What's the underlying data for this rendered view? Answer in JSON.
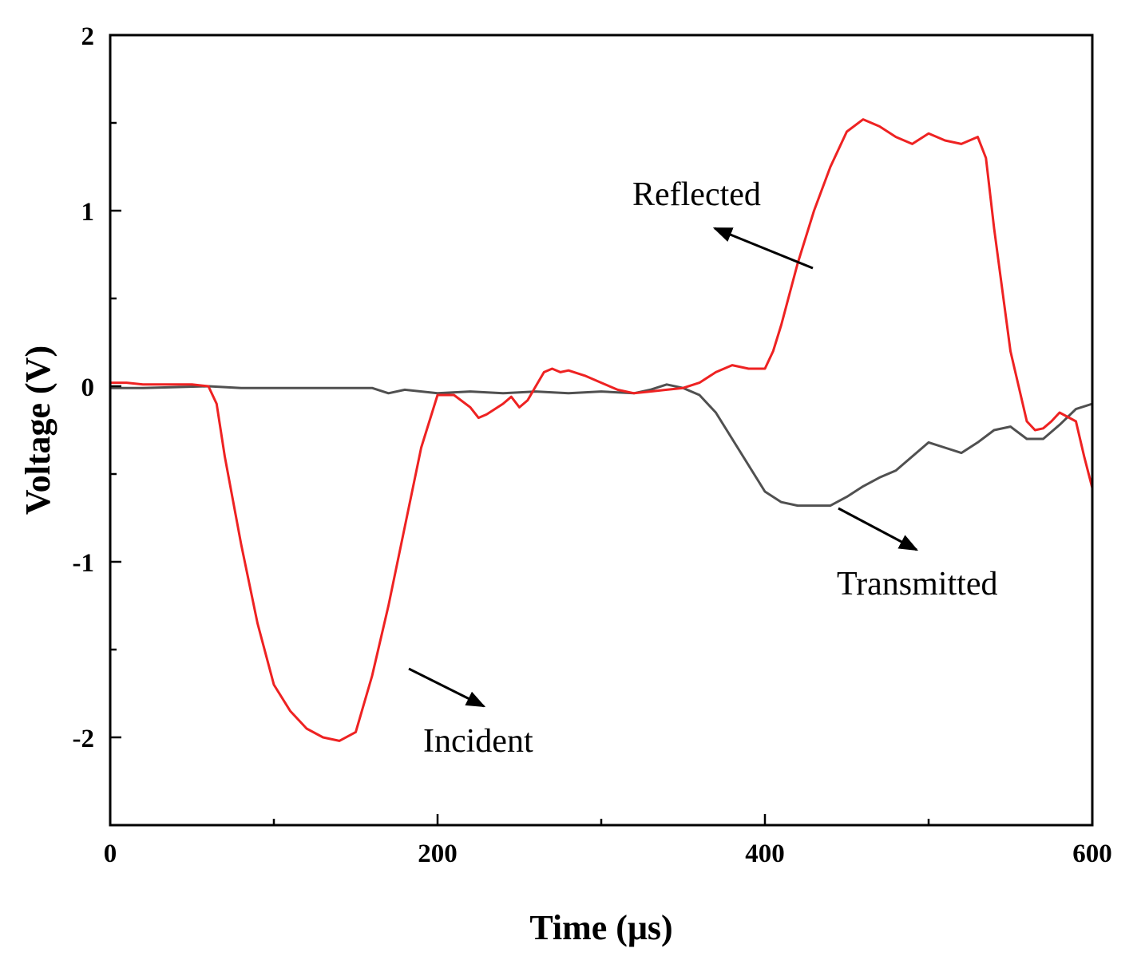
{
  "chart_data": {
    "type": "line",
    "title": "",
    "xlabel": "Time  (μs)",
    "ylabel": "Voltage (V)",
    "xlim": [
      0,
      600
    ],
    "ylim": [
      -2.5,
      2
    ],
    "xticks": [
      0,
      200,
      400,
      600
    ],
    "yticks": [
      2,
      1,
      0,
      -1,
      -2
    ],
    "grid": false,
    "series": [
      {
        "name": "Transmitted",
        "color": "#505050",
        "x": [
          0,
          20,
          40,
          60,
          80,
          100,
          120,
          140,
          160,
          170,
          180,
          200,
          220,
          240,
          260,
          280,
          300,
          320,
          330,
          340,
          350,
          360,
          370,
          380,
          390,
          400,
          410,
          420,
          430,
          440,
          450,
          460,
          470,
          480,
          490,
          500,
          510,
          520,
          530,
          540,
          550,
          560,
          570,
          580,
          590,
          600
        ],
        "y": [
          -0.01,
          -0.01,
          -0.005,
          0,
          -0.01,
          -0.01,
          -0.01,
          -0.01,
          -0.01,
          -0.04,
          -0.02,
          -0.04,
          -0.03,
          -0.04,
          -0.03,
          -0.04,
          -0.03,
          -0.04,
          -0.02,
          0.01,
          -0.01,
          -0.05,
          -0.15,
          -0.3,
          -0.45,
          -0.6,
          -0.66,
          -0.68,
          -0.68,
          -0.68,
          -0.63,
          -0.57,
          -0.52,
          -0.48,
          -0.4,
          -0.32,
          -0.35,
          -0.38,
          -0.32,
          -0.25,
          -0.23,
          -0.3,
          -0.3,
          -0.22,
          -0.13,
          -0.1
        ]
      },
      {
        "name": "Reflected",
        "color": "#ee2222",
        "x": [
          0,
          10,
          20,
          30,
          40,
          50,
          60,
          65,
          70,
          80,
          90,
          100,
          110,
          120,
          130,
          140,
          150,
          160,
          170,
          180,
          190,
          200,
          210,
          220,
          225,
          230,
          240,
          245,
          250,
          255,
          260,
          265,
          270,
          275,
          280,
          290,
          300,
          310,
          320,
          330,
          340,
          350,
          360,
          370,
          380,
          390,
          400,
          405,
          410,
          420,
          430,
          440,
          450,
          460,
          470,
          480,
          490,
          500,
          505,
          510,
          520,
          530,
          535,
          540,
          550,
          560,
          565,
          570,
          575,
          580,
          590,
          595,
          600
        ],
        "y": [
          0.02,
          0.02,
          0.01,
          0.01,
          0.01,
          0.01,
          0,
          -0.1,
          -0.4,
          -0.9,
          -1.35,
          -1.7,
          -1.85,
          -1.95,
          -2.0,
          -2.02,
          -1.97,
          -1.65,
          -1.25,
          -0.8,
          -0.35,
          -0.05,
          -0.05,
          -0.12,
          -0.18,
          -0.16,
          -0.1,
          -0.06,
          -0.12,
          -0.08,
          0,
          0.08,
          0.1,
          0.08,
          0.09,
          0.06,
          0.02,
          -0.02,
          -0.04,
          -0.03,
          -0.02,
          -0.01,
          0.02,
          0.08,
          0.12,
          0.1,
          0.1,
          0.2,
          0.35,
          0.7,
          1.0,
          1.25,
          1.45,
          1.52,
          1.48,
          1.42,
          1.38,
          1.44,
          1.42,
          1.4,
          1.38,
          1.42,
          1.3,
          0.9,
          0.2,
          -0.2,
          -0.25,
          -0.24,
          -0.2,
          -0.15,
          -0.2,
          -0.4,
          -0.58
        ]
      }
    ],
    "annotations": [
      {
        "text": "Reflected",
        "target": [
          345,
          0.9
        ]
      },
      {
        "text": "Transmitted",
        "target": [
          450,
          -0.68
        ]
      },
      {
        "text": "Incident",
        "target": [
          180,
          -1.6
        ]
      }
    ]
  }
}
